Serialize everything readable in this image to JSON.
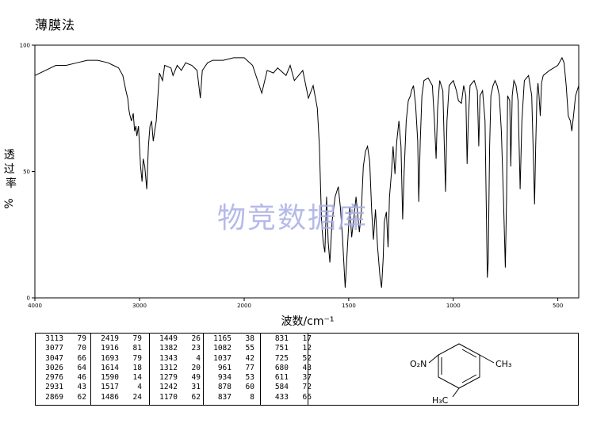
{
  "header": {
    "method": "薄膜法"
  },
  "watermark": "物竞数据库",
  "chart_data": {
    "type": "line",
    "title": "",
    "xlabel": "波数/cm⁻¹",
    "ylabel": "透过率",
    "ylabel_unit": "%",
    "xlim": [
      4000,
      400
    ],
    "ylim": [
      0,
      100
    ],
    "x_ticks": [
      4000,
      3000,
      2000,
      1500,
      1000,
      500
    ],
    "y_ticks": [
      0,
      50,
      100
    ],
    "grid": false,
    "series": [
      {
        "points": [
          [
            4000,
            88
          ],
          [
            3900,
            90
          ],
          [
            3800,
            92
          ],
          [
            3700,
            92
          ],
          [
            3600,
            93
          ],
          [
            3500,
            94
          ],
          [
            3400,
            94
          ],
          [
            3300,
            93
          ],
          [
            3250,
            92
          ],
          [
            3200,
            91
          ],
          [
            3160,
            88
          ],
          [
            3130,
            82
          ],
          [
            3113,
            79
          ],
          [
            3100,
            74
          ],
          [
            3090,
            72
          ],
          [
            3077,
            70
          ],
          [
            3060,
            73
          ],
          [
            3047,
            66
          ],
          [
            3035,
            68
          ],
          [
            3026,
            64
          ],
          [
            3010,
            68
          ],
          [
            2990,
            52
          ],
          [
            2976,
            46
          ],
          [
            2965,
            55
          ],
          [
            2950,
            52
          ],
          [
            2931,
            43
          ],
          [
            2915,
            60
          ],
          [
            2900,
            68
          ],
          [
            2885,
            70
          ],
          [
            2869,
            62
          ],
          [
            2855,
            66
          ],
          [
            2840,
            70
          ],
          [
            2810,
            89
          ],
          [
            2780,
            86
          ],
          [
            2760,
            92
          ],
          [
            2700,
            91
          ],
          [
            2680,
            88
          ],
          [
            2640,
            92
          ],
          [
            2600,
            90
          ],
          [
            2560,
            93
          ],
          [
            2500,
            92
          ],
          [
            2450,
            90
          ],
          [
            2419,
            79
          ],
          [
            2400,
            90
          ],
          [
            2350,
            93
          ],
          [
            2300,
            94
          ],
          [
            2200,
            94
          ],
          [
            2100,
            95
          ],
          [
            2000,
            95
          ],
          [
            1960,
            92
          ],
          [
            1916,
            81
          ],
          [
            1890,
            90
          ],
          [
            1860,
            89
          ],
          [
            1840,
            91
          ],
          [
            1800,
            88
          ],
          [
            1780,
            92
          ],
          [
            1760,
            86
          ],
          [
            1720,
            90
          ],
          [
            1693,
            79
          ],
          [
            1670,
            84
          ],
          [
            1650,
            75
          ],
          [
            1640,
            60
          ],
          [
            1630,
            30
          ],
          [
            1622,
            22
          ],
          [
            1614,
            18
          ],
          [
            1606,
            40
          ],
          [
            1598,
            22
          ],
          [
            1590,
            14
          ],
          [
            1580,
            30
          ],
          [
            1565,
            40
          ],
          [
            1550,
            44
          ],
          [
            1540,
            36
          ],
          [
            1530,
            24
          ],
          [
            1517,
            4
          ],
          [
            1505,
            22
          ],
          [
            1495,
            36
          ],
          [
            1486,
            24
          ],
          [
            1475,
            32
          ],
          [
            1465,
            40
          ],
          [
            1449,
            26
          ],
          [
            1440,
            34
          ],
          [
            1430,
            52
          ],
          [
            1420,
            58
          ],
          [
            1410,
            60
          ],
          [
            1400,
            54
          ],
          [
            1390,
            34
          ],
          [
            1382,
            23
          ],
          [
            1372,
            35
          ],
          [
            1362,
            20
          ],
          [
            1350,
            8
          ],
          [
            1343,
            4
          ],
          [
            1335,
            16
          ],
          [
            1330,
            30
          ],
          [
            1320,
            34
          ],
          [
            1312,
            20
          ],
          [
            1305,
            40
          ],
          [
            1295,
            50
          ],
          [
            1288,
            60
          ],
          [
            1279,
            49
          ],
          [
            1270,
            62
          ],
          [
            1260,
            70
          ],
          [
            1250,
            60
          ],
          [
            1242,
            31
          ],
          [
            1235,
            50
          ],
          [
            1225,
            70
          ],
          [
            1215,
            78
          ],
          [
            1205,
            80
          ],
          [
            1200,
            82
          ],
          [
            1190,
            84
          ],
          [
            1180,
            76
          ],
          [
            1170,
            62
          ],
          [
            1165,
            38
          ],
          [
            1158,
            62
          ],
          [
            1150,
            80
          ],
          [
            1140,
            86
          ],
          [
            1120,
            87
          ],
          [
            1100,
            84
          ],
          [
            1090,
            70
          ],
          [
            1082,
            55
          ],
          [
            1075,
            75
          ],
          [
            1065,
            86
          ],
          [
            1050,
            82
          ],
          [
            1037,
            42
          ],
          [
            1030,
            70
          ],
          [
            1020,
            84
          ],
          [
            1000,
            86
          ],
          [
            985,
            82
          ],
          [
            975,
            78
          ],
          [
            961,
            77
          ],
          [
            950,
            84
          ],
          [
            940,
            80
          ],
          [
            934,
            53
          ],
          [
            928,
            70
          ],
          [
            920,
            84
          ],
          [
            900,
            86
          ],
          [
            885,
            82
          ],
          [
            878,
            60
          ],
          [
            872,
            80
          ],
          [
            860,
            82
          ],
          [
            848,
            70
          ],
          [
            837,
            8
          ],
          [
            833,
            14
          ],
          [
            826,
            60
          ],
          [
            820,
            80
          ],
          [
            810,
            84
          ],
          [
            800,
            86
          ],
          [
            790,
            84
          ],
          [
            780,
            80
          ],
          [
            770,
            66
          ],
          [
            760,
            40
          ],
          [
            751,
            12
          ],
          [
            745,
            40
          ],
          [
            740,
            80
          ],
          [
            730,
            78
          ],
          [
            725,
            52
          ],
          [
            718,
            80
          ],
          [
            710,
            86
          ],
          [
            700,
            84
          ],
          [
            690,
            78
          ],
          [
            680,
            43
          ],
          [
            672,
            70
          ],
          [
            660,
            86
          ],
          [
            640,
            88
          ],
          [
            625,
            80
          ],
          [
            615,
            50
          ],
          [
            611,
            37
          ],
          [
            606,
            60
          ],
          [
            600,
            80
          ],
          [
            595,
            85
          ],
          [
            590,
            80
          ],
          [
            584,
            72
          ],
          [
            578,
            85
          ],
          [
            570,
            88
          ],
          [
            540,
            90
          ],
          [
            500,
            92
          ],
          [
            480,
            95
          ],
          [
            470,
            93
          ],
          [
            460,
            84
          ],
          [
            450,
            72
          ],
          [
            440,
            70
          ],
          [
            433,
            66
          ],
          [
            425,
            72
          ],
          [
            415,
            80
          ],
          [
            400,
            84
          ]
        ]
      }
    ]
  },
  "peak_table": {
    "columns": [
      [
        [
          "3113",
          "79"
        ],
        [
          "3077",
          "70"
        ],
        [
          "3047",
          "66"
        ],
        [
          "3026",
          "64"
        ],
        [
          "2976",
          "46"
        ],
        [
          "2931",
          "43"
        ],
        [
          "2869",
          "62"
        ]
      ],
      [
        [
          "2419",
          "79"
        ],
        [
          "1916",
          "81"
        ],
        [
          "1693",
          "79"
        ],
        [
          "1614",
          "18"
        ],
        [
          "1590",
          "14"
        ],
        [
          "1517",
          "4"
        ],
        [
          "1486",
          "24"
        ]
      ],
      [
        [
          "1449",
          "26"
        ],
        [
          "1382",
          "23"
        ],
        [
          "1343",
          "4"
        ],
        [
          "1312",
          "20"
        ],
        [
          "1279",
          "49"
        ],
        [
          "1242",
          "31"
        ],
        [
          "1170",
          "62"
        ]
      ],
      [
        [
          "1165",
          "38"
        ],
        [
          "1082",
          "55"
        ],
        [
          "1037",
          "42"
        ],
        [
          "961",
          "77"
        ],
        [
          "934",
          "53"
        ],
        [
          "878",
          "60"
        ],
        [
          "837",
          "8"
        ]
      ],
      [
        [
          "831",
          "17"
        ],
        [
          "751",
          "12"
        ],
        [
          "725",
          "52"
        ],
        [
          "680",
          "43"
        ],
        [
          "611",
          "37"
        ],
        [
          "584",
          "72"
        ],
        [
          "433",
          "66"
        ]
      ]
    ]
  },
  "structure": {
    "labels": {
      "nitro": "O₂N",
      "methyl_right": "CH₃",
      "methyl_bottom": "H₃C"
    }
  }
}
